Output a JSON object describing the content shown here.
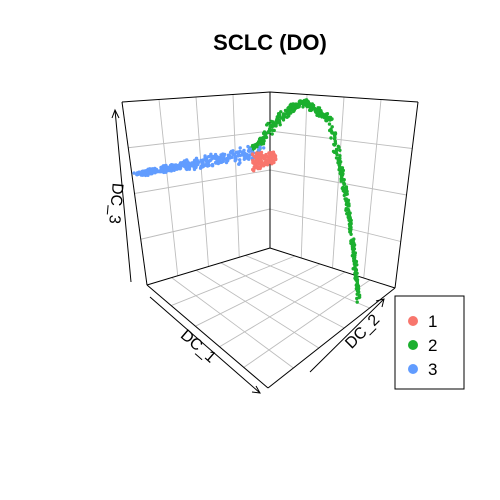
{
  "chart_data": {
    "type": "scatter",
    "projection": "3d",
    "title": "SCLC (DO)",
    "axes": {
      "x": {
        "label": "DC_1"
      },
      "y": {
        "label": "DC_2"
      },
      "z": {
        "label": "DC_3"
      }
    },
    "grid": true,
    "legend": {
      "position": "bottom-right",
      "entries": [
        {
          "name": "1",
          "color": "#F8766D"
        },
        {
          "name": "2",
          "color": "#1BAF2E"
        },
        {
          "name": "3",
          "color": "#619CFF"
        }
      ]
    },
    "series": [
      {
        "name": "1",
        "color": "#F8766D",
        "shape": "wedge at junction of branches",
        "approx_points": 120
      },
      {
        "name": "2",
        "color": "#1BAF2E",
        "shape": "arc rising then descending branch",
        "approx_points": 600
      },
      {
        "name": "3",
        "color": "#619CFF",
        "shape": "horizontal branch extending left",
        "approx_points": 400
      }
    ]
  }
}
